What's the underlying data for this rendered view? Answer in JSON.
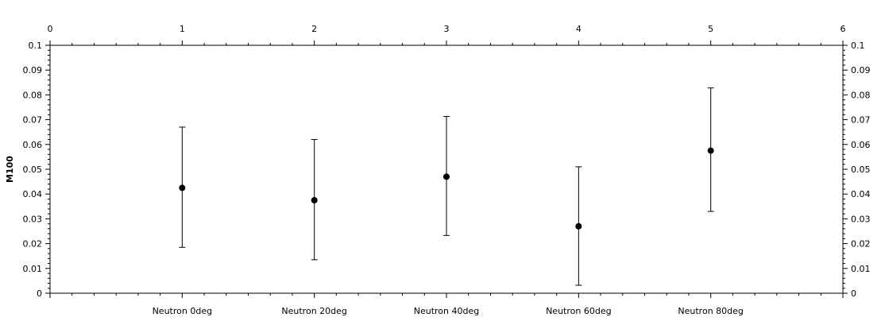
{
  "chart_data": {
    "type": "scatter",
    "title": "",
    "xlabel": "",
    "ylabel": "M100",
    "xlim": [
      0,
      6
    ],
    "ylim": [
      0,
      0.1
    ],
    "top_ticks": [
      "0",
      "1",
      "2",
      "3",
      "4",
      "5",
      "6"
    ],
    "y_ticks": [
      "0",
      "0.01",
      "0.02",
      "0.03",
      "0.04",
      "0.05",
      "0.06",
      "0.07",
      "0.08",
      "0.09",
      "0.1"
    ],
    "categories": [
      "Neutron 0deg",
      "Neutron 20deg",
      "Neutron 40deg",
      "Neutron 60deg",
      "Neutron 80deg"
    ],
    "x": [
      1,
      2,
      3,
      4,
      5
    ],
    "values": [
      0.0425,
      0.0375,
      0.047,
      0.027,
      0.0575
    ],
    "err_low": [
      0.0185,
      0.0135,
      0.0233,
      0.0032,
      0.033
    ],
    "err_high": [
      0.067,
      0.062,
      0.0713,
      0.051,
      0.0828
    ],
    "grid": false,
    "legend": "none",
    "color": "#000000"
  }
}
